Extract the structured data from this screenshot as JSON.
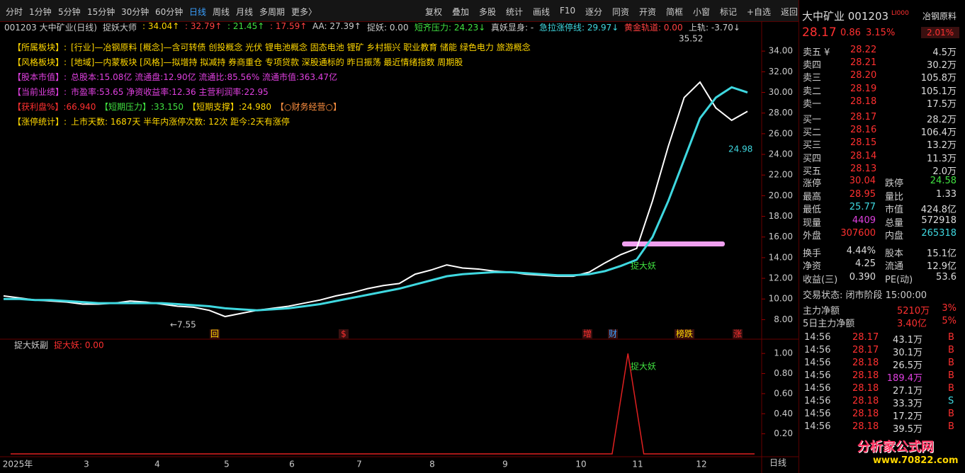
{
  "toolbar": {
    "periods": [
      "分时",
      "1分钟",
      "5分钟",
      "15分钟",
      "30分钟",
      "60分钟",
      "日线",
      "周线",
      "月线",
      "多周期",
      "更多〉"
    ],
    "tools": [
      "复权",
      "叠加",
      "多股",
      "统计",
      "画线",
      "F10",
      "逐分",
      "同资",
      "开资",
      "简框",
      "小窗",
      "标记",
      "+自选",
      "返回"
    ]
  },
  "indicator_line": [
    "001203 大中矿业(日线)",
    "捉妖大师",
    ": 34.04↑",
    ": 32.79↑",
    ": 21.45↑",
    ": 17.59↑",
    "AA: 27.39↑",
    "捉妖: 0.00",
    "短齐压力: 24.23↓",
    "真妖显身: -",
    "急拉涨停线: 29.97↓",
    "黄金轨道: 0.00",
    "上轨: -3.70↓"
  ],
  "info_lines": [
    [
      "【所属板块】:",
      "[行业]—冶钢原料 [概念]—含可转债 创投概念 光伏 锂电池概念 固态电池 锂矿 乡村振兴 职业教育 储能 绿色电力 旅游概念"
    ],
    [
      "【风格板块】:",
      "[地域]—内蒙板块 [风格]—拟增持 拟减持 券商重仓 专项贷款 深股通标的 昨日振荡 最近情绪指数 周期股"
    ],
    [
      "【股本市值】:",
      "总股本:15.08亿 流通盘:12.90亿 流通比:85.56% 流通市值:363.47亿"
    ],
    [
      "【当前业绩】:",
      "市盈率:53.65 净资收益率:12.36 主营利润率:22.95"
    ],
    [
      "【获利盘%】:66.940",
      "【短期压力】:33.150",
      "【短期支撑】:24.980",
      "【○财务经营○】"
    ],
    [
      "【涨停统计】:",
      "上市天数: 1687天 半年内涨停次数: 12次 距今:2天有涨停"
    ]
  ],
  "chart_data": [
    {
      "type": "line",
      "ylim": [
        7,
        36
      ],
      "yticks": [
        {
          "value": 8,
          "label": "8.00"
        },
        {
          "value": 10,
          "label": "10.00"
        },
        {
          "value": 12,
          "label": "12.00"
        },
        {
          "value": 14,
          "label": "14.00"
        },
        {
          "value": 16,
          "label": "16.00"
        },
        {
          "value": 18,
          "label": "18.00"
        },
        {
          "value": 20,
          "label": "20.00"
        },
        {
          "value": 22,
          "label": "22.00"
        },
        {
          "value": 24,
          "label": "24.00"
        },
        {
          "value": 26,
          "label": "26.00"
        },
        {
          "value": 28,
          "label": "28.00"
        },
        {
          "value": 30,
          "label": "30.00"
        },
        {
          "value": 32,
          "label": "32.00"
        },
        {
          "value": 34,
          "label": "34.00"
        }
      ],
      "x_labels": [
        "2025年",
        "3",
        "4",
        "5",
        "6",
        "7",
        "8",
        "9",
        "10",
        "11",
        "12"
      ],
      "series": [
        {
          "color": "#ffffff",
          "values": [
            10.3,
            10.1,
            9.9,
            9.8,
            9.7,
            9.5,
            9.5,
            9.6,
            9.8,
            9.7,
            9.5,
            9.3,
            9.2,
            8.9,
            8.3,
            8.6,
            8.9,
            9.1,
            9.3,
            9.6,
            9.9,
            10.3,
            10.6,
            11.0,
            11.3,
            11.5,
            12.4,
            12.8,
            13.3,
            13.0,
            12.9,
            12.7,
            12.6,
            12.4,
            12.3,
            12.2,
            12.2,
            12.6,
            13.5,
            14.3,
            14.9,
            19.5,
            24.8,
            29.5,
            31.0,
            28.5,
            27.3,
            28.17
          ]
        },
        {
          "color": "#3fd8e0",
          "values": [
            10.0,
            10.0,
            9.9,
            9.9,
            9.8,
            9.7,
            9.6,
            9.6,
            9.6,
            9.6,
            9.6,
            9.5,
            9.4,
            9.3,
            9.1,
            9.0,
            8.9,
            9.0,
            9.1,
            9.3,
            9.5,
            9.8,
            10.1,
            10.4,
            10.7,
            11.0,
            11.4,
            11.8,
            12.2,
            12.4,
            12.5,
            12.6,
            12.6,
            12.5,
            12.4,
            12.3,
            12.3,
            12.4,
            12.7,
            13.2,
            13.8,
            16.0,
            19.5,
            23.5,
            27.5,
            29.5,
            30.5,
            30.0
          ]
        }
      ],
      "annotations": [
        "35.52",
        "24.98",
        "←7.55",
        "捉大妖"
      ],
      "event_marks": [
        "回",
        "$",
        "增",
        "财",
        "榜跌",
        "涨"
      ]
    },
    {
      "type": "line",
      "title": "捉大妖副",
      "subtitle": "捉大妖: 0.00",
      "ylim": [
        0,
        1.1
      ],
      "yticks": [
        {
          "value": 0.2,
          "label": "0.20"
        },
        {
          "value": 0.4,
          "label": "0.40"
        },
        {
          "value": 0.6,
          "label": "0.60"
        },
        {
          "value": 0.8,
          "label": "0.80"
        },
        {
          "value": 1,
          "label": "1.00"
        }
      ],
      "series": [
        {
          "color": "#e02020",
          "values": [
            0,
            0,
            0,
            0,
            0,
            0,
            0,
            0,
            0,
            0,
            0,
            0,
            0,
            0,
            0,
            0,
            0,
            0,
            0,
            0,
            0,
            0,
            0,
            0,
            0,
            0,
            0,
            0,
            0,
            0,
            0,
            0,
            0,
            0,
            0,
            0,
            0,
            0,
            0,
            1,
            0,
            0,
            0,
            0,
            0,
            0,
            0,
            0
          ]
        }
      ],
      "annotation": "捉大妖",
      "period": "日线"
    }
  ],
  "quote": {
    "name": "大中矿业 001203",
    "tag": "LI000",
    "sector": "冶钢原料",
    "price": "28.17",
    "change": "0.86",
    "pct": "3.15%",
    "sector_pct": "2.01%",
    "book": [
      [
        "卖五 ¥",
        "28.22",
        "4.5万"
      ],
      [
        "卖四",
        "28.21",
        "30.2万"
      ],
      [
        "卖三",
        "28.20",
        "105.8万"
      ],
      [
        "卖二",
        "28.19",
        "105.1万"
      ],
      [
        "卖一",
        "28.18",
        "17.5万"
      ],
      [
        "买一",
        "28.17",
        "28.2万"
      ],
      [
        "买二",
        "28.16",
        "106.4万"
      ],
      [
        "买三",
        "28.15",
        "13.2万"
      ],
      [
        "买四",
        "28.14",
        "11.3万"
      ],
      [
        "买五",
        "28.13",
        "2.0万"
      ]
    ],
    "stats": [
      [
        "涨停",
        "30.04",
        "跌停",
        "24.58"
      ],
      [
        "最高",
        "28.95",
        "量比",
        "1.33"
      ],
      [
        "最低",
        "25.77",
        "市值",
        "424.8亿"
      ],
      [
        "现量",
        "4409",
        "总量",
        "572918"
      ],
      [
        "外盘",
        "307600",
        "内盘",
        "265318"
      ],
      [
        "换手",
        "4.44%",
        "股本",
        "15.1亿"
      ],
      [
        "净资",
        "4.25",
        "流通",
        "12.9亿"
      ],
      [
        "收益(三)",
        "0.390",
        "PE(动)",
        "53.6"
      ]
    ],
    "status": "交易状态: 闭市阶段 15:00:00",
    "flows": [
      [
        "主力净额",
        "5210万",
        "3%"
      ],
      [
        "5日主力净额",
        "3.40亿",
        "5%"
      ]
    ],
    "ticks": [
      [
        "14:56",
        "28.17",
        "43.1万",
        "B"
      ],
      [
        "14:56",
        "28.17",
        "30.1万",
        "B"
      ],
      [
        "14:56",
        "28.18",
        "26.5万",
        "B"
      ],
      [
        "14:56",
        "28.18",
        "189.4万",
        "B"
      ],
      [
        "14:56",
        "28.18",
        "27.1万",
        "B"
      ],
      [
        "14:56",
        "28.18",
        "33.3万",
        "S"
      ],
      [
        "14:56",
        "28.18",
        "17.2万",
        "B"
      ],
      [
        "14:56",
        "28.18",
        "39.5万",
        "B"
      ]
    ]
  },
  "watermark": {
    "title": "分析家公式网",
    "url": "www.70822.com"
  }
}
